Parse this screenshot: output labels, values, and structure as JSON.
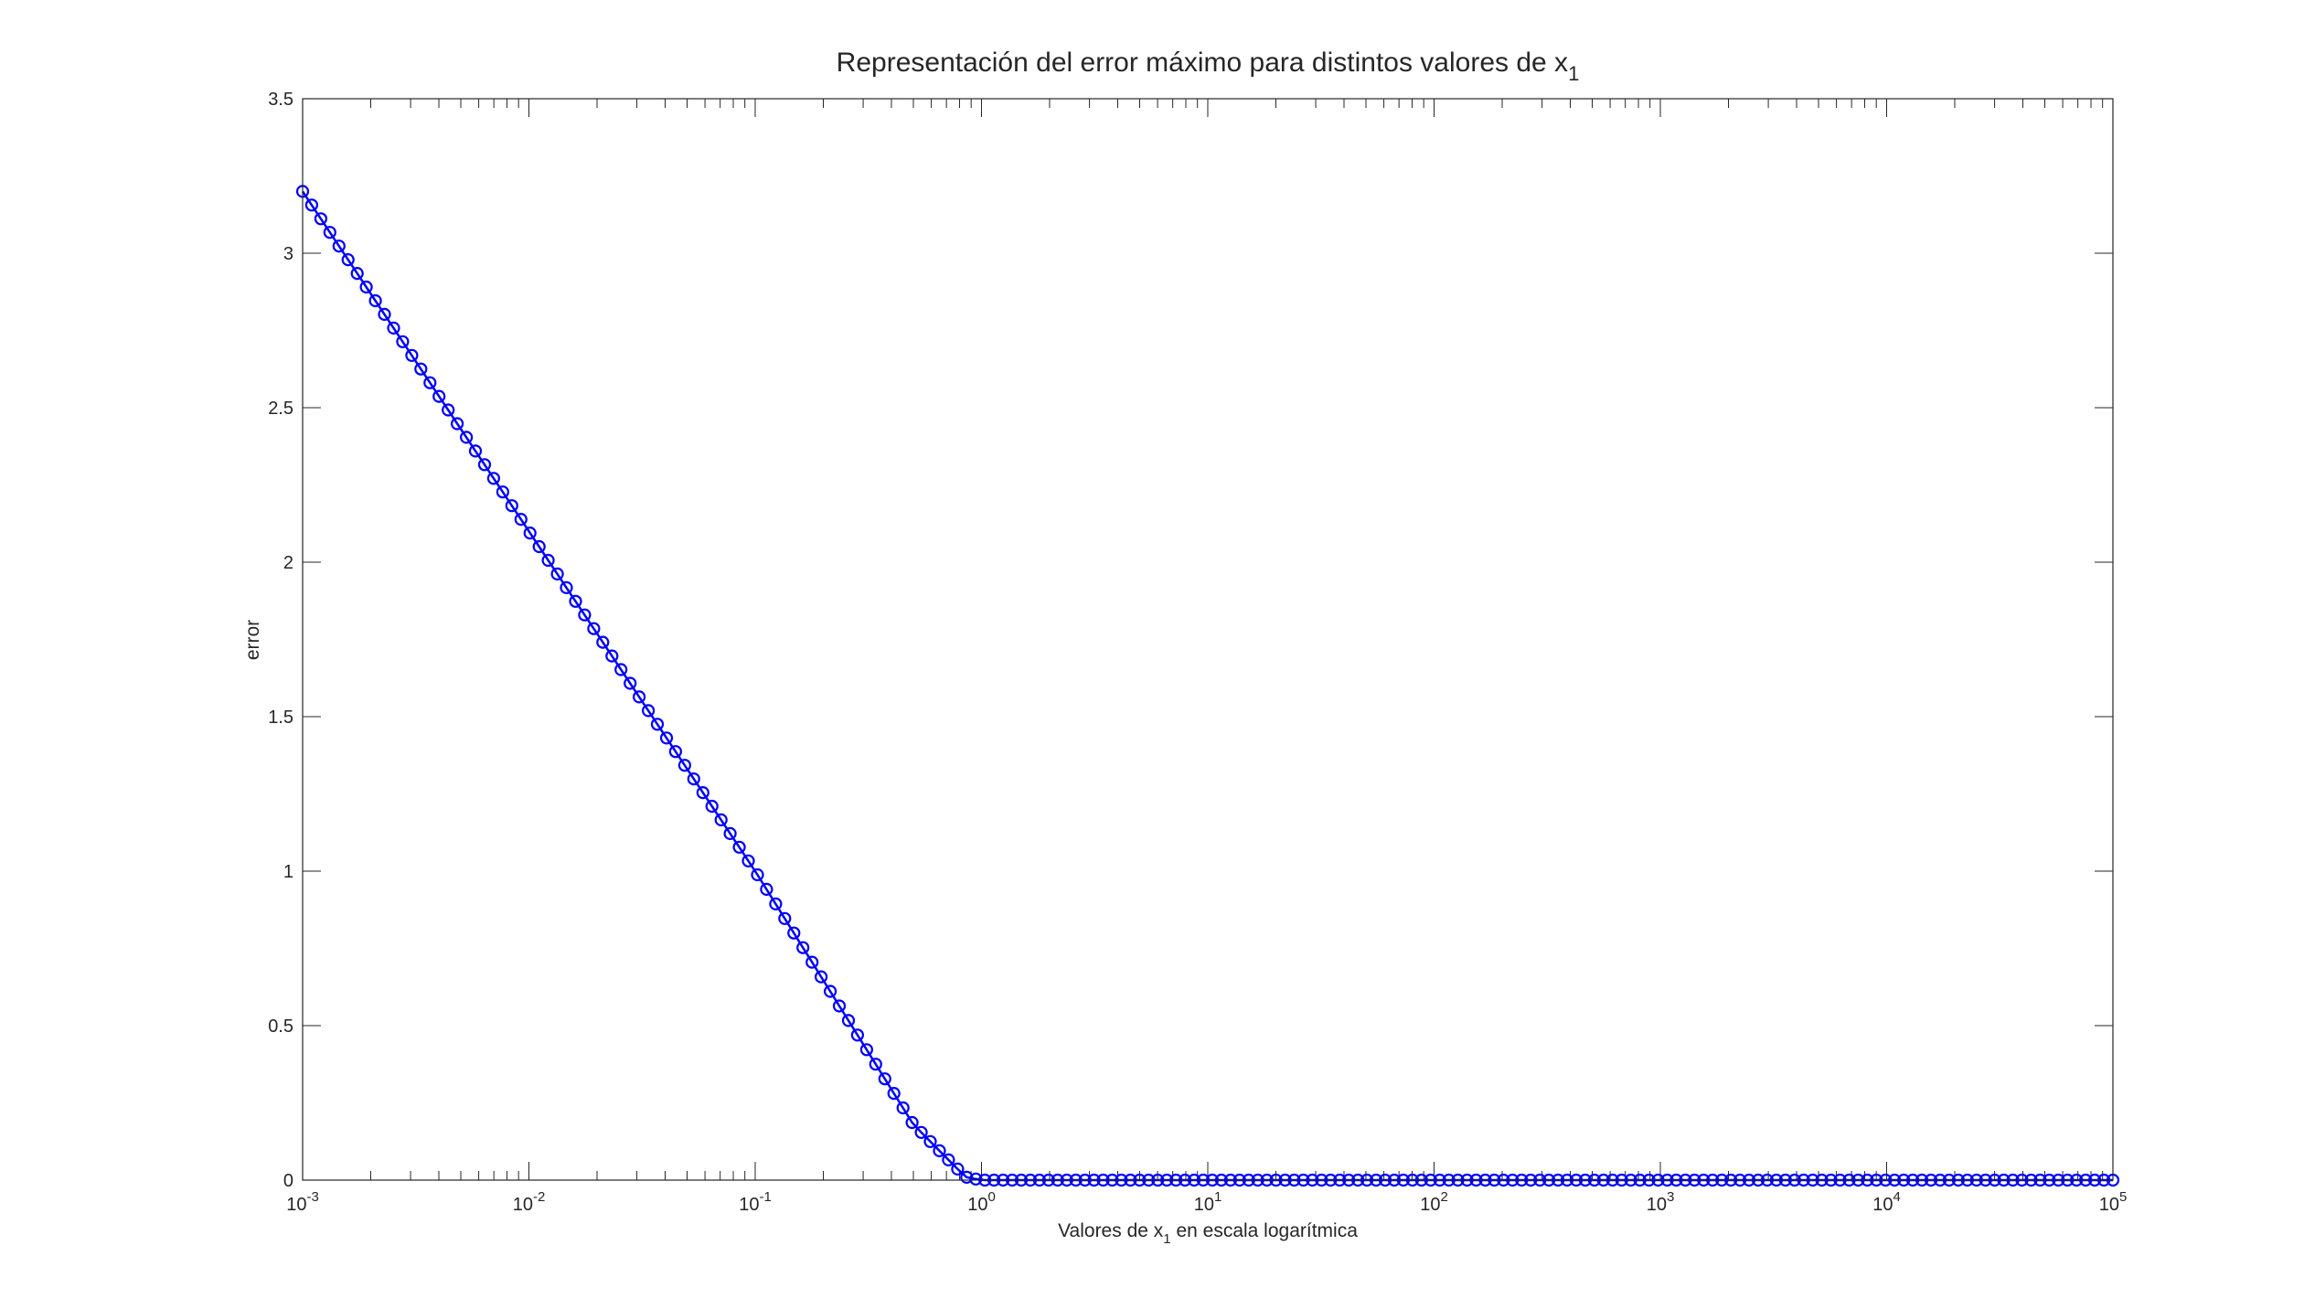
{
  "chart_data": {
    "type": "line",
    "title": "Representación del error máximo para distintos valores de x",
    "title_subscript": "1",
    "xlabel_before": "Valores de x",
    "xlabel_subscript": "1",
    "xlabel_after": " en escala logarítmica",
    "ylabel": "error",
    "x_scale": "log",
    "xlim": [
      0.001,
      100000
    ],
    "ylim": [
      0,
      3.5
    ],
    "x_ticks": [
      {
        "base": "10",
        "exp": "-3",
        "value": 0.001
      },
      {
        "base": "10",
        "exp": "-2",
        "value": 0.01
      },
      {
        "base": "10",
        "exp": "-1",
        "value": 0.1
      },
      {
        "base": "10",
        "exp": "0",
        "value": 1
      },
      {
        "base": "10",
        "exp": "1",
        "value": 10
      },
      {
        "base": "10",
        "exp": "2",
        "value": 100
      },
      {
        "base": "10",
        "exp": "3",
        "value": 1000
      },
      {
        "base": "10",
        "exp": "4",
        "value": 10000
      },
      {
        "base": "10",
        "exp": "5",
        "value": 100000
      }
    ],
    "y_ticks": [
      "0",
      "0.5",
      "1",
      "1.5",
      "2",
      "2.5",
      "3",
      "3.5"
    ],
    "grid": false,
    "series": [
      {
        "color": "#0000ff",
        "marker": "circle",
        "x_range": [
          0.001,
          100000
        ],
        "n_points": 200,
        "x_spacing": "logarithmic",
        "description_points": [
          {
            "x": 0.001,
            "y": 3.2
          },
          {
            "x": 0.01,
            "y": 2.1
          },
          {
            "x": 0.1,
            "y": 1.0
          },
          {
            "x": 0.5,
            "y": 0.18
          },
          {
            "x": 0.85,
            "y": 0.01
          },
          {
            "x": 1,
            "y": 0
          },
          {
            "x": 100000,
            "y": 0
          }
        ]
      }
    ]
  }
}
